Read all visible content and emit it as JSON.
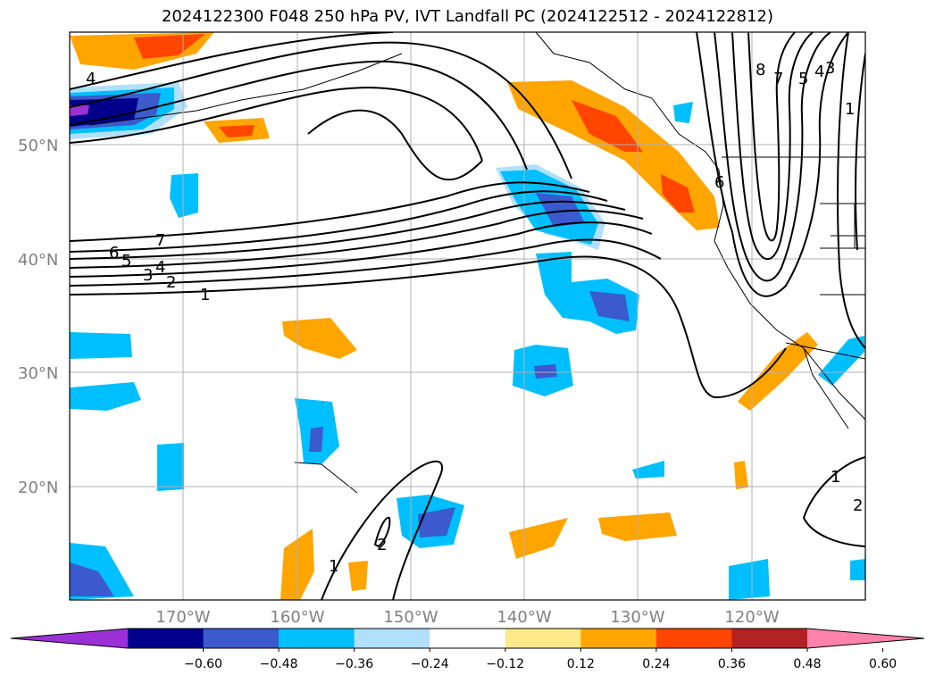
{
  "title": "2024122300 F048 250 hPa PV, IVT Landfall PC (2024122512 - 2024122812)",
  "lat_labels": [
    "50°N",
    "40°N",
    "30°N",
    "20°N"
  ],
  "lon_labels": [
    "170°W",
    "160°W",
    "150°W",
    "140°W",
    "130°W",
    "120°W"
  ],
  "colorbar": {
    "ticks": [
      "−0.60",
      "−0.48",
      "−0.36",
      "−0.24",
      "−0.12",
      "0.12",
      "0.24",
      "0.36",
      "0.48",
      "0.60"
    ],
    "colors": [
      "#9b30d6",
      "#00008b",
      "#3a5acd",
      "#00bfff",
      "#b0e0fa",
      "#ffffff",
      "#ffe98a",
      "#ffa500",
      "#ff4500",
      "#b22222",
      "#ff82ab"
    ]
  },
  "contour_labels": {
    "west": [
      "7",
      "6",
      "5",
      "4",
      "3",
      "2",
      "1"
    ],
    "north_west": "4",
    "east_top": [
      "8",
      "7",
      "5",
      "4",
      "3",
      "1"
    ],
    "mid": "6",
    "south": [
      "2",
      "1"
    ],
    "south_east": [
      "1",
      "2"
    ]
  },
  "map": {
    "extent_lon": [
      -180,
      -110
    ],
    "extent_lat": [
      10,
      60
    ],
    "grid": true,
    "shading": "PC (shaded, colorbar)",
    "contours": "250 hPa PV (black lines)"
  }
}
